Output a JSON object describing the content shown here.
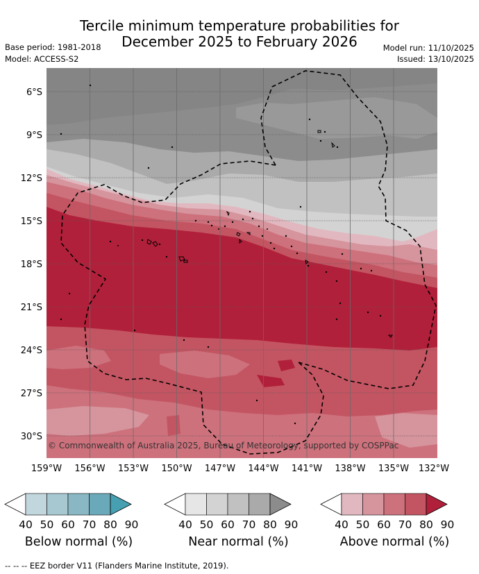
{
  "title_line1": "Tercile minimum temperature probabilities for",
  "title_line2": "December 2025 to February 2026",
  "base_period": "Base period: 1981-2018",
  "model": "Model: ACCESS-S2",
  "model_run": "Model run: 11/10/2025",
  "issued": "Issued: 13/10/2025",
  "copyright": "© Commonwealth of Australia 2025, Bureau of Meteorology, supported by COSPPac",
  "lat_labels": [
    "6°S",
    "9°S",
    "12°S",
    "15°S",
    "18°S",
    "21°S",
    "24°S",
    "27°S",
    "30°S"
  ],
  "lon_labels": [
    "159°W",
    "156°W",
    "153°W",
    "150°W",
    "147°W",
    "144°W",
    "141°W",
    "138°W",
    "135°W",
    "132°W"
  ],
  "colorbars": [
    {
      "label": "Below normal (%)",
      "ticks": [
        "40",
        "50",
        "60",
        "70",
        "80",
        "90"
      ],
      "colors": [
        "#ffffff",
        "#c2d6dd",
        "#a8c8d1",
        "#89b8c4",
        "#6aa9b9",
        "#46a0b1"
      ]
    },
    {
      "label": "Near normal (%)",
      "ticks": [
        "40",
        "50",
        "60",
        "70",
        "80",
        "90"
      ],
      "colors": [
        "#ffffff",
        "#e6e6e6",
        "#d3d3d3",
        "#c1c1c1",
        "#aaaaaa",
        "#8c8c8c"
      ]
    },
    {
      "label": "Above normal (%)",
      "ticks": [
        "40",
        "50",
        "60",
        "70",
        "80",
        "90"
      ],
      "colors": [
        "#ffffff",
        "#e2b8c0",
        "#d6949d",
        "#cd717c",
        "#c35562",
        "#b1203a"
      ]
    }
  ],
  "footer": "--  --  -- EEZ border V11 (Flanders Marine Institute, 2019)."
}
